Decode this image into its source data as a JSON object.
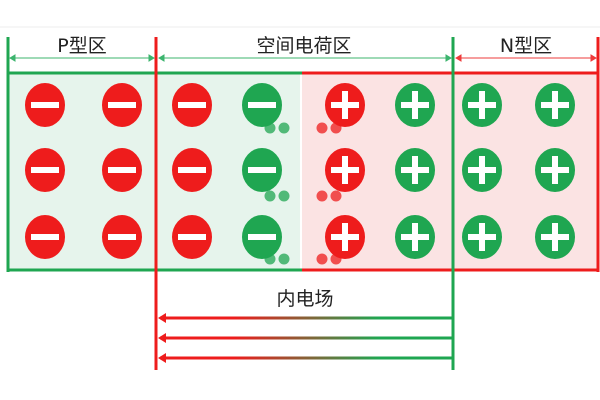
{
  "labels": {
    "p_region": "P型区",
    "space_charge_region": "空间电荷区",
    "n_region": "N型区",
    "built_in_field": "内电场"
  },
  "colors": {
    "red": "#ee1c1c",
    "green": "#1fa651",
    "green_bg": "#e6f4ec",
    "red_bg": "#fbe3e3"
  },
  "ions": {
    "columns": [
      {
        "sign": "minus",
        "color": "red"
      },
      {
        "sign": "minus",
        "color": "red"
      },
      {
        "sign": "minus",
        "color": "red"
      },
      {
        "sign": "minus",
        "color": "green"
      },
      {
        "sign": "plus",
        "color": "red"
      },
      {
        "sign": "plus",
        "color": "green"
      },
      {
        "sign": "plus",
        "color": "green"
      },
      {
        "sign": "plus",
        "color": "green"
      }
    ],
    "rows": 3
  },
  "field_arrows": 3
}
